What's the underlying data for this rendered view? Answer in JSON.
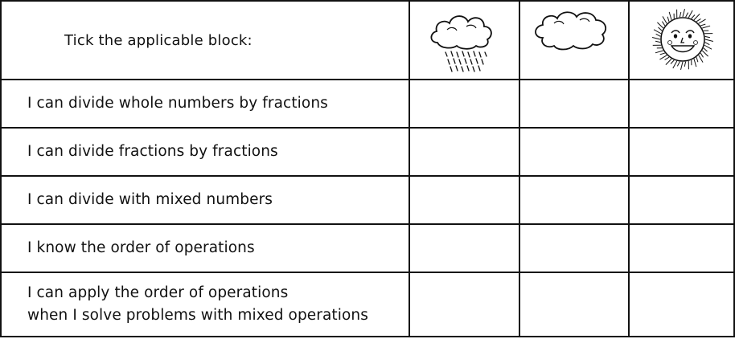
{
  "header": {
    "instruction": "Tick the applicable block:",
    "icons": [
      "rain-cloud-icon",
      "cloud-icon",
      "sun-icon"
    ]
  },
  "rows": [
    {
      "lines": [
        "I can divide whole numbers by fractions"
      ]
    },
    {
      "lines": [
        "I can divide fractions by fractions"
      ]
    },
    {
      "lines": [
        "I can divide with mixed numbers"
      ]
    },
    {
      "lines": [
        "I know the order of operations"
      ]
    },
    {
      "lines": [
        "I can apply the order of operations",
        "when I solve problems with mixed operations"
      ]
    }
  ],
  "colors": {
    "ink": "#111111",
    "background": "#ffffff"
  }
}
